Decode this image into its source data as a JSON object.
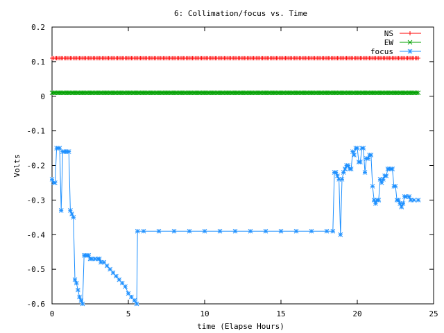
{
  "chart_data": {
    "type": "line",
    "title": "6: Collimation/focus vs. Time",
    "xlabel": "time (Elapse Hours)",
    "ylabel": "Volts",
    "xlim": [
      0,
      25
    ],
    "ylim": [
      -0.6,
      0.2
    ],
    "xticks": [
      0,
      5,
      10,
      15,
      20,
      25
    ],
    "yticks": [
      -0.6,
      -0.5,
      -0.4,
      -0.3,
      -0.2,
      -0.1,
      0,
      0.1,
      0.2
    ],
    "grid": false,
    "legend_position": "top-right",
    "series": [
      {
        "name": "NS",
        "color": "#ff0000",
        "marker": "plus",
        "x_start": 0,
        "x_end": 24,
        "constant_value": 0.11
      },
      {
        "name": "EW",
        "color": "#00a000",
        "marker": "cross",
        "x_start": 0,
        "x_end": 24,
        "constant_value": 0.01
      },
      {
        "name": "focus",
        "color": "#1e90ff",
        "marker": "star",
        "points": [
          [
            0.0,
            -0.24
          ],
          [
            0.1,
            -0.25
          ],
          [
            0.2,
            -0.25
          ],
          [
            0.3,
            -0.15
          ],
          [
            0.4,
            -0.15
          ],
          [
            0.5,
            -0.15
          ],
          [
            0.6,
            -0.33
          ],
          [
            0.7,
            -0.16
          ],
          [
            0.8,
            -0.16
          ],
          [
            0.9,
            -0.16
          ],
          [
            1.0,
            -0.16
          ],
          [
            1.1,
            -0.16
          ],
          [
            1.2,
            -0.33
          ],
          [
            1.3,
            -0.34
          ],
          [
            1.4,
            -0.35
          ],
          [
            1.5,
            -0.53
          ],
          [
            1.6,
            -0.54
          ],
          [
            1.7,
            -0.56
          ],
          [
            1.8,
            -0.58
          ],
          [
            1.9,
            -0.59
          ],
          [
            2.0,
            -0.6
          ],
          [
            2.1,
            -0.46
          ],
          [
            2.2,
            -0.46
          ],
          [
            2.3,
            -0.46
          ],
          [
            2.4,
            -0.46
          ],
          [
            2.5,
            -0.47
          ],
          [
            2.6,
            -0.47
          ],
          [
            2.8,
            -0.47
          ],
          [
            3.0,
            -0.47
          ],
          [
            3.1,
            -0.47
          ],
          [
            3.2,
            -0.48
          ],
          [
            3.4,
            -0.48
          ],
          [
            3.6,
            -0.49
          ],
          [
            3.8,
            -0.5
          ],
          [
            4.0,
            -0.51
          ],
          [
            4.2,
            -0.52
          ],
          [
            4.4,
            -0.53
          ],
          [
            4.6,
            -0.54
          ],
          [
            4.8,
            -0.55
          ],
          [
            5.0,
            -0.57
          ],
          [
            5.2,
            -0.58
          ],
          [
            5.4,
            -0.59
          ],
          [
            5.55,
            -0.6
          ],
          [
            5.6,
            -0.39
          ],
          [
            6.0,
            -0.39
          ],
          [
            7.0,
            -0.39
          ],
          [
            8.0,
            -0.39
          ],
          [
            9.0,
            -0.39
          ],
          [
            10.0,
            -0.39
          ],
          [
            11.0,
            -0.39
          ],
          [
            12.0,
            -0.39
          ],
          [
            13.0,
            -0.39
          ],
          [
            14.0,
            -0.39
          ],
          [
            15.0,
            -0.39
          ],
          [
            16.0,
            -0.39
          ],
          [
            17.0,
            -0.39
          ],
          [
            18.0,
            -0.39
          ],
          [
            18.4,
            -0.39
          ],
          [
            18.5,
            -0.22
          ],
          [
            18.6,
            -0.22
          ],
          [
            18.7,
            -0.23
          ],
          [
            18.8,
            -0.24
          ],
          [
            18.9,
            -0.4
          ],
          [
            19.0,
            -0.24
          ],
          [
            19.1,
            -0.22
          ],
          [
            19.2,
            -0.21
          ],
          [
            19.3,
            -0.2
          ],
          [
            19.4,
            -0.2
          ],
          [
            19.5,
            -0.21
          ],
          [
            19.6,
            -0.21
          ],
          [
            19.7,
            -0.16
          ],
          [
            19.8,
            -0.17
          ],
          [
            19.9,
            -0.15
          ],
          [
            20.0,
            -0.15
          ],
          [
            20.1,
            -0.19
          ],
          [
            20.2,
            -0.19
          ],
          [
            20.3,
            -0.15
          ],
          [
            20.4,
            -0.15
          ],
          [
            20.5,
            -0.22
          ],
          [
            20.6,
            -0.18
          ],
          [
            20.7,
            -0.18
          ],
          [
            20.8,
            -0.17
          ],
          [
            20.9,
            -0.17
          ],
          [
            21.0,
            -0.26
          ],
          [
            21.1,
            -0.3
          ],
          [
            21.2,
            -0.31
          ],
          [
            21.3,
            -0.3
          ],
          [
            21.4,
            -0.3
          ],
          [
            21.5,
            -0.24
          ],
          [
            21.6,
            -0.25
          ],
          [
            21.7,
            -0.24
          ],
          [
            21.8,
            -0.23
          ],
          [
            21.9,
            -0.23
          ],
          [
            22.0,
            -0.21
          ],
          [
            22.1,
            -0.21
          ],
          [
            22.2,
            -0.21
          ],
          [
            22.3,
            -0.21
          ],
          [
            22.4,
            -0.26
          ],
          [
            22.5,
            -0.26
          ],
          [
            22.6,
            -0.3
          ],
          [
            22.7,
            -0.3
          ],
          [
            22.8,
            -0.31
          ],
          [
            22.9,
            -0.32
          ],
          [
            23.0,
            -0.31
          ],
          [
            23.1,
            -0.29
          ],
          [
            23.2,
            -0.29
          ],
          [
            23.4,
            -0.29
          ],
          [
            23.5,
            -0.3
          ],
          [
            23.7,
            -0.3
          ],
          [
            24.0,
            -0.3
          ]
        ]
      }
    ]
  }
}
